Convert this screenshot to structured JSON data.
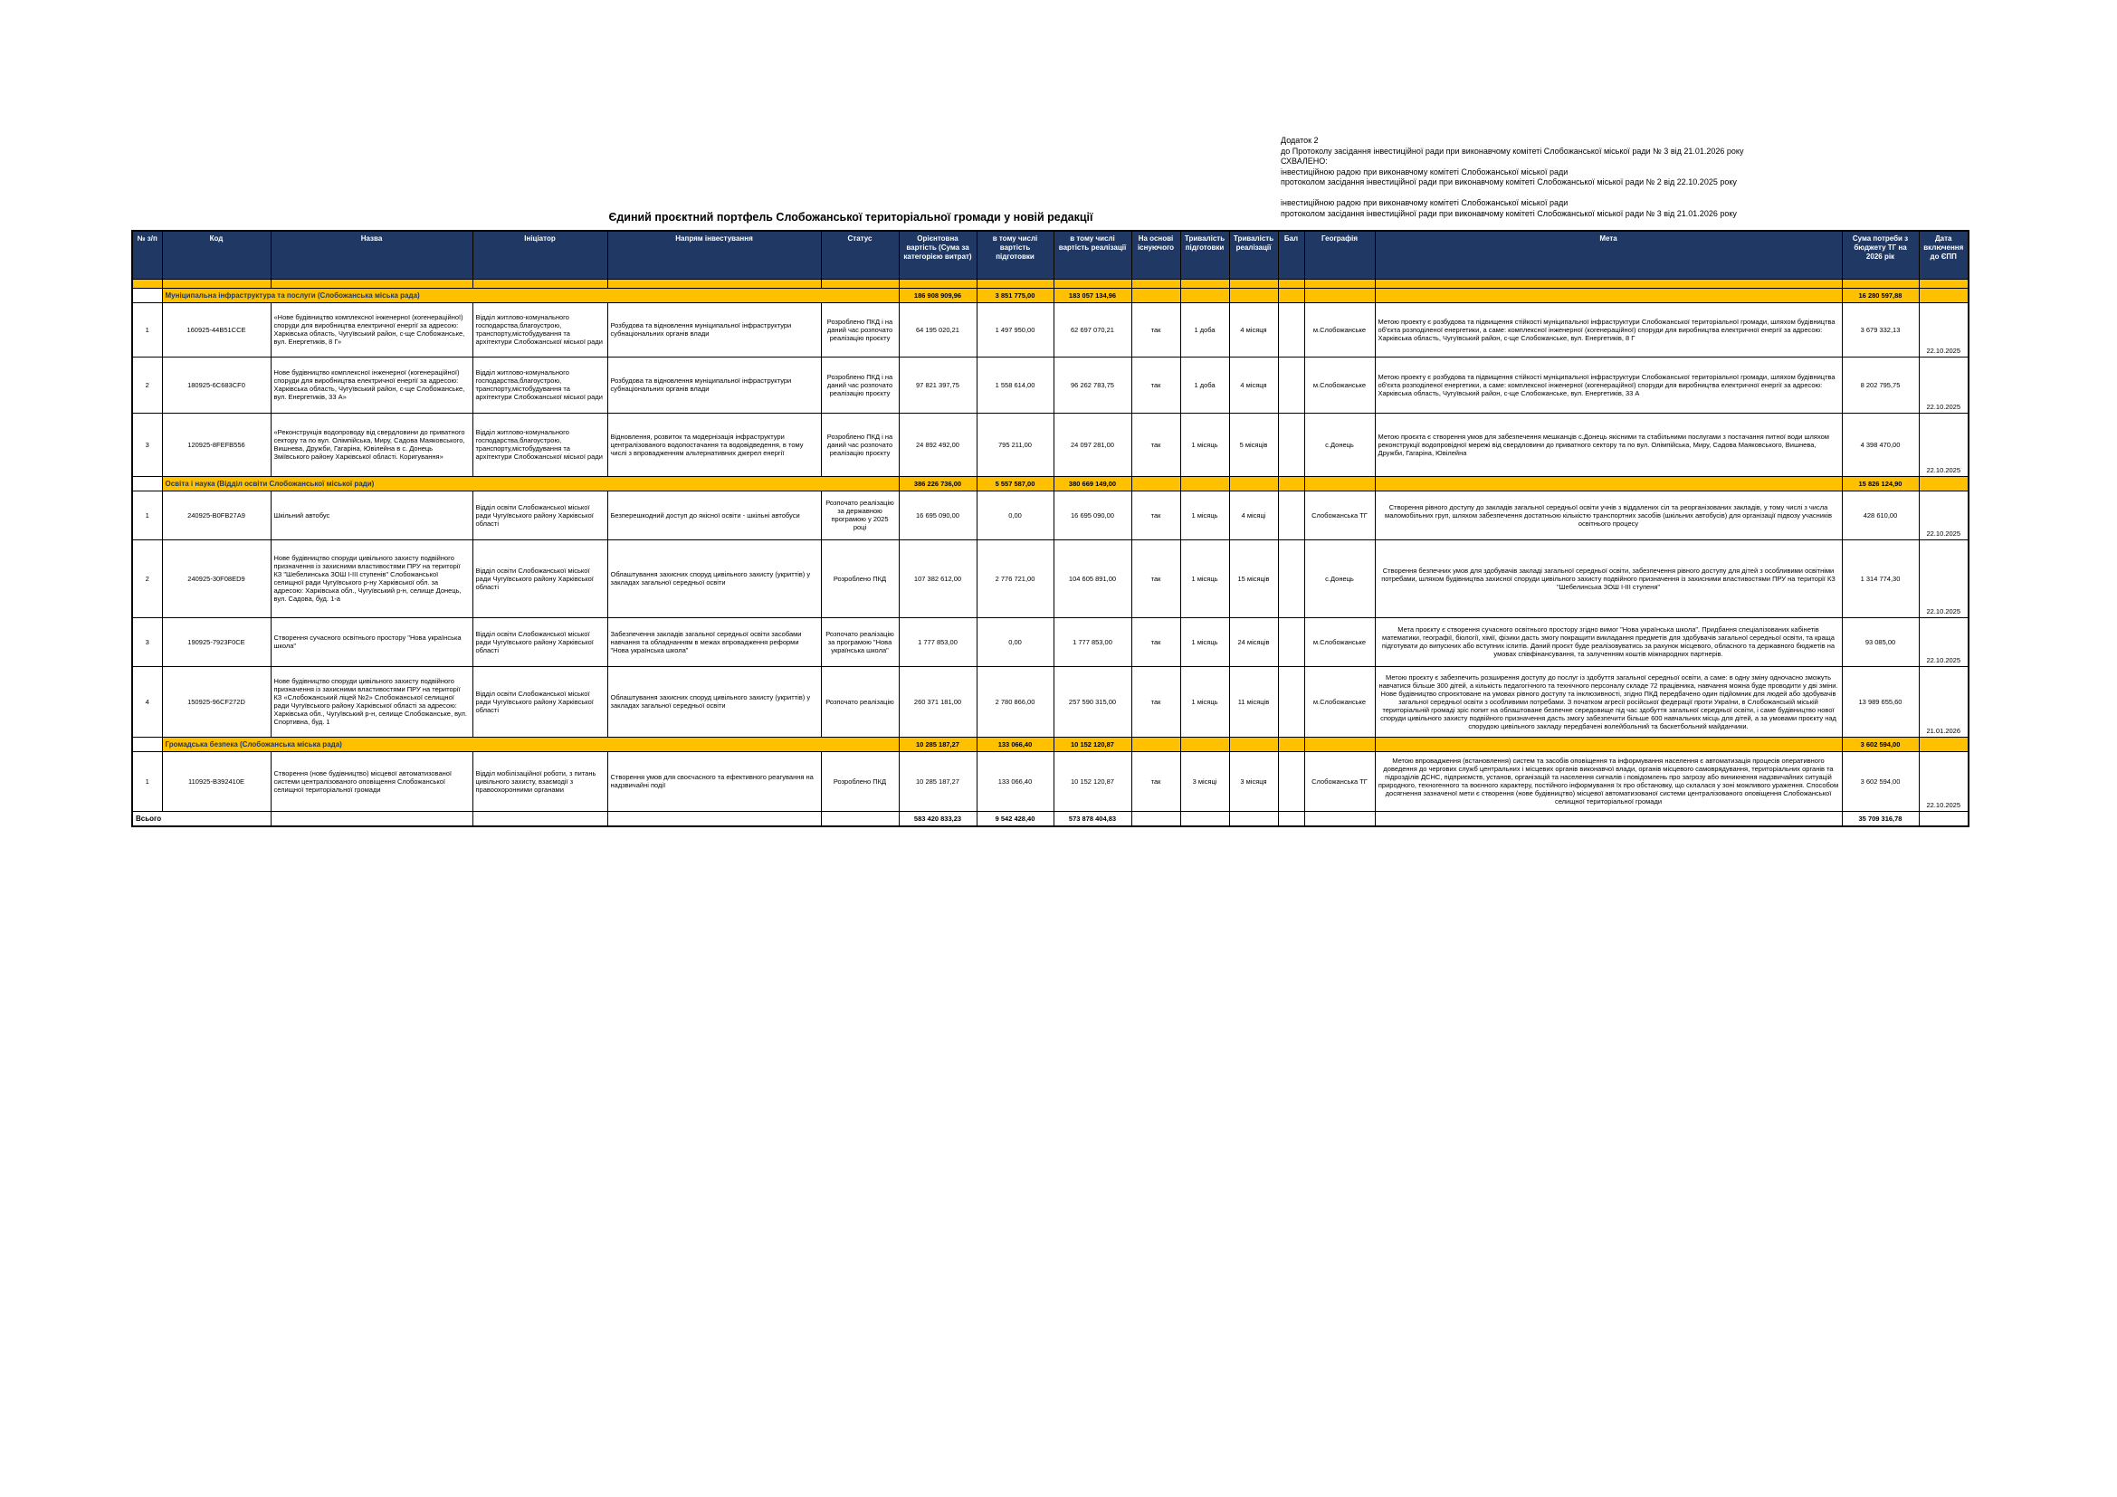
{
  "appendix": {
    "lines": [
      "Додаток 2",
      "до Протоколу засідання інвестиційної ради при виконавчому комітеті Слобожанської міської ради № 3 від 21.01.2026 року",
      "СХВАЛЕНО:",
      "інвестиційною радою при виконавчому комітеті Слобожанської міської ради",
      "протоколом засідання інвестиційної ради при виконавчому комітеті Слобожанської міської ради № 2 від 22.10.2025 року",
      "",
      "інвестиційною радою при виконавчому комітеті Слобожанської міської ради",
      "протоколом засідання інвестиційної ради при виконавчому комітеті Слобожанської міської ради № 3 від 21.01.2026 року"
    ]
  },
  "title": "Єдиний проєктний портфель Слобожанської територіальної громади у новій редакції",
  "colors": {
    "header_bg": "#1F3864",
    "section_bg": "#FFC000"
  },
  "table": {
    "headers": [
      "№ з/п",
      "Код",
      "Назва",
      "Ініціатор",
      "Напрям інвестування",
      "Статус",
      "Орієнтовна вартість (Сума за категорією витрат)",
      "в тому числі вартість підготовки",
      "в тому числі вартість реалізації",
      "На основі існуючого",
      "Тривалість підготовки",
      "Тривалість реалізації",
      "Бал",
      "Географія",
      "Мета",
      "Сума потреби з бюджету ТГ на 2026 рік",
      "Дата включення до ЄПП"
    ],
    "sections": [
      {
        "title": "Муніципальна інфраструктура та послуги (Слобожанська міська рада)",
        "total_cost": "186 908 909,96",
        "total_prep": "3 851 775,00",
        "total_impl": "183 057 134,96",
        "total_budget_2026": "16 280 597,88",
        "rows": [
          {
            "num": "1",
            "code": "160925-44B51CCE",
            "name": "«Нове будівництво комплексної інженерної (когенераційної) споруди для виробництва електричної енергії за адресою: Харківська область, Чугуївський район, с-ще Слобожанське, вул. Енергетиків, 8 Г»",
            "initiator": "Відділ житлово-комунального господарства,благоустрою, транспорту,містобудування та архітектури Слобожанської міської ради",
            "direction": "Розбудова та відновлення муніципальної інфраструктури субнаціональних органів влади",
            "status": "Розроблено ПКД і на даний час розпочато реалізацію проєкту",
            "cost": "64 195 020,21",
            "prep_cost": "1 497 950,00",
            "impl_cost": "62 697 070,21",
            "existing": "так",
            "prep_duration": "1 доба",
            "impl_duration": "4 місяця",
            "score": "",
            "geography": "м.Слобожанське",
            "goal": "Метою проекту є розбудова та підвищення стійкості муніципальної інфраструктури Слобожанської територіальної громади, шляхом будівництва об'єкта розподіленої енергетики, а саме: комплексної інженерної (когенераційної) споруди для виробництва електричної енергії за адресою: Харківська область, Чугуївський район, с-ще Слобожанське, вул. Енергетиків, 8 Г",
            "budget_2026": "3 679 332,13",
            "date_epp": "22.10.2025"
          },
          {
            "num": "2",
            "code": "180925-6C683CF0",
            "name": "Нове будівництво комплексної інженерної (когенераційної) споруди для виробництва електричної енергії за адресою: Харківська область, Чугуївський район, с-ще Слобожанське, вул. Енергетиків, 33 А»",
            "initiator": "Відділ житлово-комунального господарства,благоустрою, транспорту,містобудування та архітектури Слобожанської міської ради",
            "direction": "Розбудова та відновлення муніципальної інфраструктури субнаціональних органів влади",
            "status": "Розроблено ПКД і на даний час розпочато реалізацію проєкту",
            "cost": "97 821 397,75",
            "prep_cost": "1 558 614,00",
            "impl_cost": "96 262 783,75",
            "existing": "так",
            "prep_duration": "1 доба",
            "impl_duration": "4 місяця",
            "score": "",
            "geography": "м.Слобожанське",
            "goal": "Метою проекту є розбудова та підвищення стійкості муніципальної інфраструктури Слобожанської територіальної громади, шляхом будівництва об'єкта розподіленої енергетики, а саме: комплексної інженерної (когенераційної) споруди для виробництва електричної енергії за адресою: Харківська область, Чугуївський район, с-ще Слобожанське, вул. Енергетиків, 33 А",
            "budget_2026": "8 202 795,75",
            "date_epp": "22.10.2025"
          },
          {
            "num": "3",
            "code": "120925-8FEFB556",
            "name": "«Реконструкція водопроводу від свердловини до приватного сектору та по вул. Олімпійська, Миру, Садова Маяковського, Вишнева, Дружби, Гагаріна, Ювілейна в с. Донець Зміївського району Харківської області. Коригування»",
            "initiator": "Відділ житлово-комунального господарства,благоустрою, транспорту,містобудування та архітектури Слобожанської міської ради",
            "direction": "Відновлення, розвиток та модернізація інфраструктури централізованого водопостачання та водовідведення, в тому числі з впровадженням альтернативних джерел енергії",
            "status": "Розроблено ПКД і на даний час розпочато реалізацію проєкту",
            "cost": "24 892 492,00",
            "prep_cost": "795 211,00",
            "impl_cost": "24 097 281,00",
            "existing": "так",
            "prep_duration": "1 місяць",
            "impl_duration": "5 місяців",
            "score": "",
            "geography": "с.Донець",
            "goal": "Метою проєкта є створення умов для забезпечення мешканців с.Донець якісними та стабільними послугами з постачання питної води шляхом реконструкції водопровідної мережі від свердловини до приватного сектору та по вул. Олімпійська, Миру, Садова Маяковського, Вишнева, Дружби, Гагаріна, Ювілейна",
            "budget_2026": "4 398 470,00",
            "date_epp": "22.10.2025"
          }
        ]
      },
      {
        "title": "Освіта і наука (Відділ освіти Слобожанської міської ради)",
        "total_cost": "386 226 736,00",
        "total_prep": "5 557 587,00",
        "total_impl": "380 669 149,00",
        "total_budget_2026": "15 826 124,90",
        "rows": [
          {
            "num": "1",
            "code": "240925-B0FB27A9",
            "name": "Шкільний автобус",
            "initiator": "Відділ освіти Слобожанської міської ради Чугуївського району Харківської області",
            "direction": "Безперешкодний доступ до якісної освіти - шкільні автобуси",
            "status": "Розпочато реалізацію за державною програмою у 2025 році",
            "cost": "16 695 090,00",
            "prep_cost": "0,00",
            "impl_cost": "16 695 090,00",
            "existing": "так",
            "prep_duration": "1 місяць",
            "impl_duration": "4 місяці",
            "score": "",
            "geography": "Слобожанська ТГ",
            "goal": "Створення рівного доступу до закладів загальної середньої освіти учнів з віддалених сіл та реорганізованих закладів, у тому числі з числа маломобільних груп, шляхом забезпечення достатньою кількістю транспортних засобів (шкільних автобусів) для організації підвозу учасників освітнього процесу",
            "budget_2026": "428 610,00",
            "date_epp": "22.10.2025"
          },
          {
            "num": "2",
            "code": "240925-30F08ED9",
            "name": "Нове будівництво споруди цивільного захисту подвійного призначення із захисними властивостями ПРУ на території КЗ \"Шебелинська ЗОШ І-ІІІ ступенів\" Слобожанської селищної ради Чугуївського р-ну Харківської обл. за адресою: Харківська обл., Чугуївський р-н, селище Донець, вул. Садова, буд. 1-а",
            "initiator": "Відділ освіти Слобожанської міської ради Чугуївського району Харківської області",
            "direction": "Облаштування захисних споруд цивільного захисту (укриттів) у закладах загальної середньої освіти",
            "status": "Розроблено ПКД",
            "cost": "107 382 612,00",
            "prep_cost": "2 776 721,00",
            "impl_cost": "104 605 891,00",
            "existing": "так",
            "prep_duration": "1 місяць",
            "impl_duration": "15 місяців",
            "score": "",
            "geography": "с.Донець",
            "goal": "Створення безпечних умов для здобувачів закладі загальної середньої освіти, забезпечення рівного доступу для дітей з особливими освітніми потребами, шляхом будівництва захисної споруди цивільного захисту подвійного призначення із захисними властивостями ПРУ на території КЗ \"Шебелинська ЗОШ І-ІІІ ступеня\"",
            "budget_2026": "1 314 774,30",
            "date_epp": "22.10.2025"
          },
          {
            "num": "3",
            "code": "190925-7923F0CE",
            "name": "Створення сучасного освітнього простору \"Нова українська школа\"",
            "initiator": "Відділ освіти Слобожанської міської ради Чугуївського району Харківської області",
            "direction": "Забезпечення закладів загальної середньої освіти засобами навчання та обладнанням в межах впровадження реформи \"Нова українська школа\"",
            "status": "Розпочато реалізацію за програмою \"Нова українська школа\"",
            "cost": "1 777 853,00",
            "prep_cost": "0,00",
            "impl_cost": "1 777 853,00",
            "existing": "так",
            "prep_duration": "1 місяць",
            "impl_duration": "24 місяців",
            "score": "",
            "geography": "м.Слобожанське",
            "goal": "Мета проєкту є створення сучасного освітнього простору згідно вимог \"Нова українська школа\". Придбання спеціалізованих кабінетів математики, географії, біології, хімії, фізики дасть змогу покращити викладання предметів для здобувачів загальної середньої освіти, та краща підготувати до випускних або вступних іспитів. Даний проєкт буде реалізовуватись за рахунок місцевого, обласного та державного бюджетів на умовах співфінансування, та залученням коштів міжнародних партнерів.",
            "budget_2026": "93 085,00",
            "date_epp": "22.10.2025"
          },
          {
            "num": "4",
            "code": "150925-96CF272D",
            "name": "Нове будівництво споруди цивільного захисту подвійного призначення із захисними властивостями ПРУ на території КЗ «Слобожанський ліцей №2» Слобожанської селищної ради Чугуївського району Харківської області за адресою: Харківська обл., Чугуївський р-н, селище Слобожанське, вул. Спортивна, буд. 1",
            "initiator": "Відділ освіти Слобожанської міської ради Чугуївського району Харківської області",
            "direction": "Облаштування захисних споруд цивільного захисту (укриттів) у закладах загальної середньої освіти",
            "status": "Розпочато реалізацію",
            "cost": "260 371 181,00",
            "prep_cost": "2 780 866,00",
            "impl_cost": "257 590 315,00",
            "existing": "так",
            "prep_duration": "1 місяць",
            "impl_duration": "11 місяців",
            "score": "",
            "geography": "м.Слобожанське",
            "goal": "Метою проєкту є забезпечить розширення доступу до послуг із здобуття загальної середньої освіти, а саме: в одну зміну одночасно зможуть навчатися більше 300 дітей, а кількість педагогічного та технічного персоналу складе 72 працівника, навчання можна буде проводити у дві зміни. Нове будівництво спроєктоване на умовах рівного доступу та інклюзивності, згідно ПКД передбачено один підйомник для людей або здобувачів загальної середньої освіти з особливими потребами. З початком агресії російської федерації проти України, в Слобожанській міській територіальній громаді зріс попит на облаштоване безпечне середовище під час здобуття загальної середньої освіти, і саме будівництво нової споруди цивільного захисту подвійного призначення дасть змогу забезпечити більше 600 навчальних місць для дітей, а за умовами проєкту над спорудою цивільного закладу передбачені волейбольний та баскетбольний майданчики.",
            "budget_2026": "13 989 655,60",
            "date_epp": "21.01.2026"
          }
        ]
      },
      {
        "title": "Громадська безпека (Слобожанська міська рада)",
        "total_cost": "10 285 187,27",
        "total_prep": "133 066,40",
        "total_impl": "10 152 120,87",
        "total_budget_2026": "3 602 594,00",
        "rows": [
          {
            "num": "1",
            "code": "110925-B392410E",
            "name": "Створення (нове будівництво) місцевої автоматизованої системи централізованого оповіщення Слобожанської селищної територіальної громади",
            "initiator": "Відділ мобілізаційної роботи, з питань цивільного захисту, взаємодії з правоохоронними органами",
            "direction": "Створення умов для своєчасного та ефективного реагування на надзвичайні події",
            "status": "Розроблено ПКД",
            "cost": "10 285 187,27",
            "prep_cost": "133 066,40",
            "impl_cost": "10 152 120,87",
            "existing": "так",
            "prep_duration": "3 місяці",
            "impl_duration": "3 місяця",
            "score": "",
            "geography": "Слобожанська ТГ",
            "goal": "Метою впровадження (встановлення) систем та засобів оповіщення та інформування населення є автоматизація процесів оперативного доведення до чергових служб центральних і місцевих органів виконавчої влади, органів місцевого самоврядування, територіальних органів та підрозділів ДСНС, підприємств, установ, організацій та населення сигналів і повідомлень про загрозу або виникнення надзвичайних ситуацій природного, техногенного та воєнного характеру, постійного інформування їх про обстановку, що склалася у зоні можливого ураження. Способом досягнення зазначеної мети є створення (нове будівництво) місцевої автоматизованої системи централізованого оповіщення Слобожанської селищної територіальної громади",
            "budget_2026": "3 602 594,00",
            "date_epp": "22.10.2025"
          }
        ]
      }
    ],
    "grand_total": {
      "label": "Всього",
      "total_cost": "583 420 833,23",
      "total_prep": "9 542 428,40",
      "total_impl": "573 878 404,83",
      "total_budget_2026": "35 709 316,78"
    }
  }
}
